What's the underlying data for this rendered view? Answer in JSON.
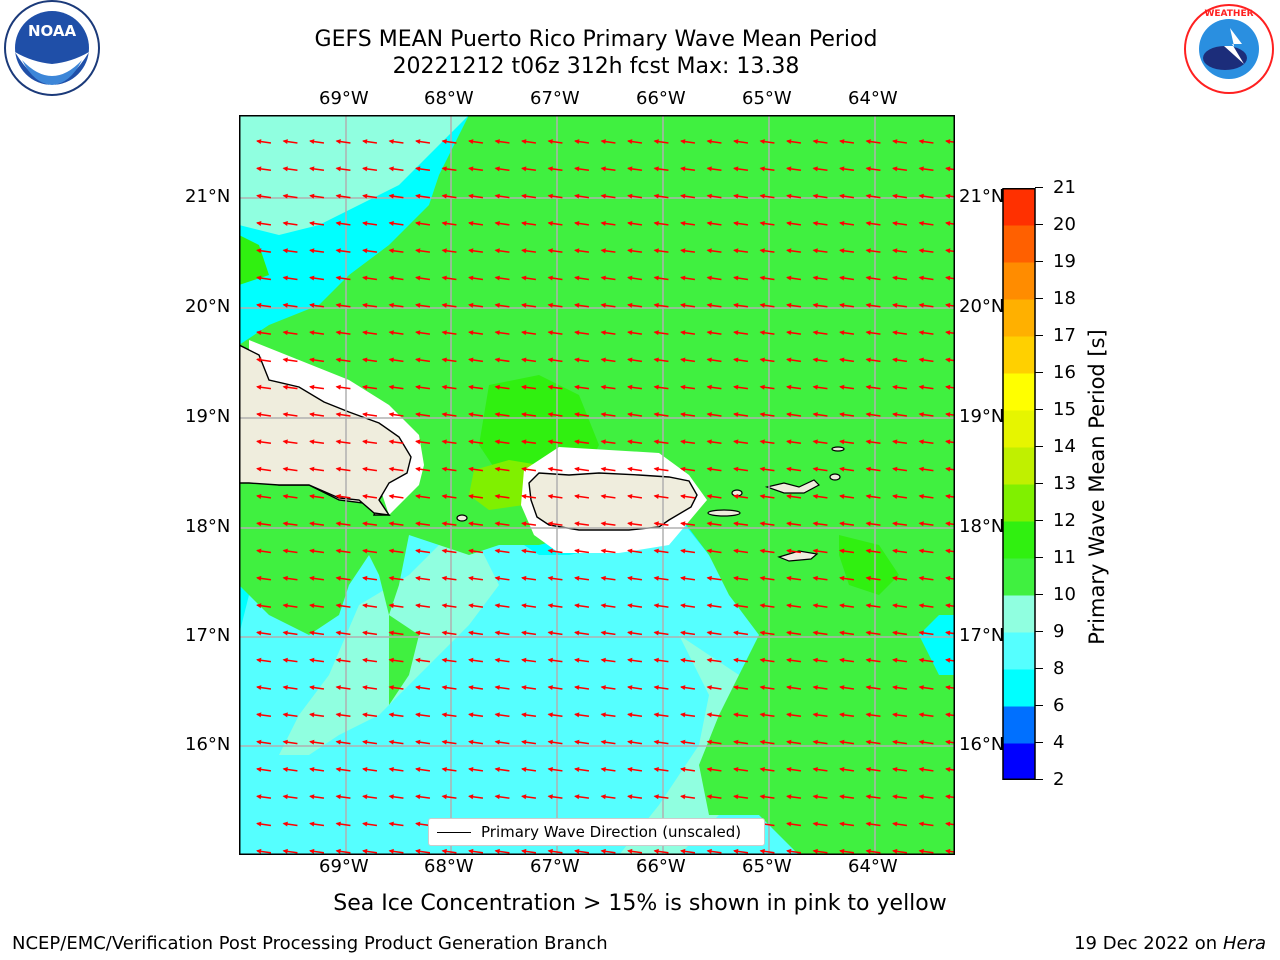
{
  "header": {
    "title_line1": "GEFS MEAN Puerto Rico Primary Wave Mean Period",
    "title_line2": "20221212 t06z 312h fcst   Max: 13.38"
  },
  "logos": {
    "left": "NOAA",
    "right": "NATIONAL WEATHER SERVICE"
  },
  "map": {
    "lon_ticks": [
      "69°W",
      "68°W",
      "67°W",
      "66°W",
      "65°W",
      "64°W"
    ],
    "lat_ticks": [
      "21°N",
      "20°N",
      "19°N",
      "18°N",
      "17°N",
      "16°N"
    ],
    "legend_label": "Primary Wave Direction (unscaled)",
    "colors": {
      "land": "#efeddd",
      "arrows": "#ff0000",
      "grid": "#b0b0b0"
    }
  },
  "colorbar": {
    "label": "Primary Wave Mean Period [s]",
    "ticks": [
      "2",
      "4",
      "6",
      "8",
      "9",
      "10",
      "11",
      "12",
      "13",
      "14",
      "15",
      "16",
      "17",
      "18",
      "19",
      "20",
      "21"
    ],
    "colors": [
      "#0000ff",
      "#0070ff",
      "#00ffff",
      "#55ffff",
      "#90ffe0",
      "#40f040",
      "#30f010",
      "#80f000",
      "#c0f000",
      "#e6f500",
      "#ffff00",
      "#ffd000",
      "#ffb000",
      "#ff8c00",
      "#ff6000",
      "#ff3000"
    ]
  },
  "note": "Sea Ice Concentration > 15% is shown in pink to yellow",
  "footer": {
    "left": "NCEP/EMC/Verification Post Processing Product Generation Branch",
    "date": "19 Dec 2022 on",
    "host": "Hera"
  }
}
